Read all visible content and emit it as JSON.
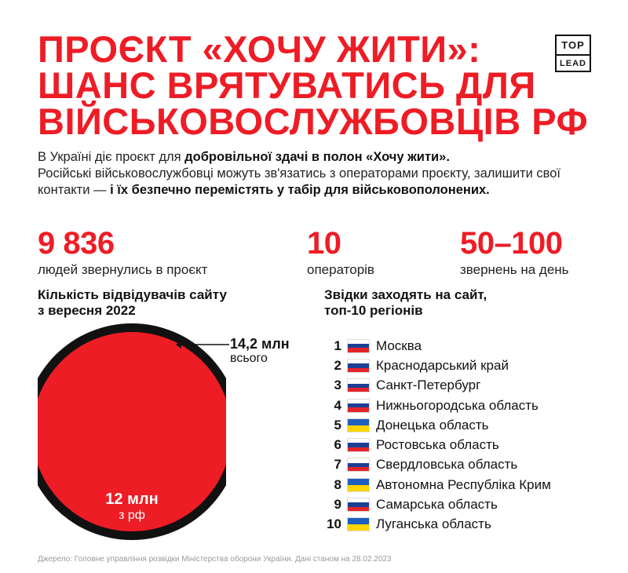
{
  "title": {
    "line1": "ПРОЄКТ «ХОЧУ ЖИТИ»:",
    "line2": "ШАНС ВРЯТУВАТИСЬ ДЛЯ",
    "line3": "ВІЙСЬКОВОСЛУЖБОВЦІВ РФ"
  },
  "logo": {
    "top": "TOP",
    "bottom": "LEAD"
  },
  "intro": {
    "p1": "В Україні діє проєкт для ",
    "b1": "добровільної здачі в полон «Хочу жити».",
    "p2": "Російські військовослужбовці можуть зв'язатись з операторами проєкту, залишити свої контакти — ",
    "b2": "і їх безпечно перемістять у табір для військовополонених."
  },
  "stats": [
    {
      "value": "9 836",
      "label": "людей звернулись в проєкт"
    },
    {
      "value": "10",
      "label": "операторів"
    },
    {
      "value": "50–100",
      "label": "звернень на день"
    }
  ],
  "visitors": {
    "heading": "Кількість відвідувачів сайту\nз вересня 2022",
    "total_value": "14,2 млн",
    "total_label": "всього",
    "ru_value": "12 млн",
    "ru_label": "з рф"
  },
  "chart_data": {
    "type": "nested-circle",
    "title": "Кількість відвідувачів сайту з вересня 2022",
    "series": [
      {
        "name": "всього",
        "value": 14.2,
        "unit": "млн",
        "color": "#111111"
      },
      {
        "name": "з рф",
        "value": 12,
        "unit": "млн",
        "color": "#ee1c25"
      }
    ]
  },
  "regions": {
    "heading": "Звідки заходять на сайт,\nтоп-10 регіонів",
    "items": [
      {
        "rank": "1",
        "name": "Москва",
        "flag": "ru"
      },
      {
        "rank": "2",
        "name": "Краснодарський край",
        "flag": "ru"
      },
      {
        "rank": "3",
        "name": "Санкт-Петербург",
        "flag": "ru"
      },
      {
        "rank": "4",
        "name": "Нижньогородська область",
        "flag": "ru"
      },
      {
        "rank": "5",
        "name": "Донецька область",
        "flag": "ua"
      },
      {
        "rank": "6",
        "name": "Ростовська область",
        "flag": "ru"
      },
      {
        "rank": "7",
        "name": "Свердловська область",
        "flag": "ru"
      },
      {
        "rank": "8",
        "name": "Автономна Республіка Крим",
        "flag": "ua"
      },
      {
        "rank": "9",
        "name": "Самарська область",
        "flag": "ru"
      },
      {
        "rank": "10",
        "name": "Луганська область",
        "flag": "ua"
      }
    ]
  },
  "flags": {
    "ru": [
      "#ffffff",
      "#1c3f95",
      "#e4242b"
    ],
    "ua": [
      "#1f5fbf",
      "#ffd500"
    ]
  },
  "colors": {
    "accent": "#ee1c25",
    "text": "#111111"
  },
  "source": "Джерело: Головне управління розвідки Міністерства оборони України. Дані станом на 28.02.2023"
}
